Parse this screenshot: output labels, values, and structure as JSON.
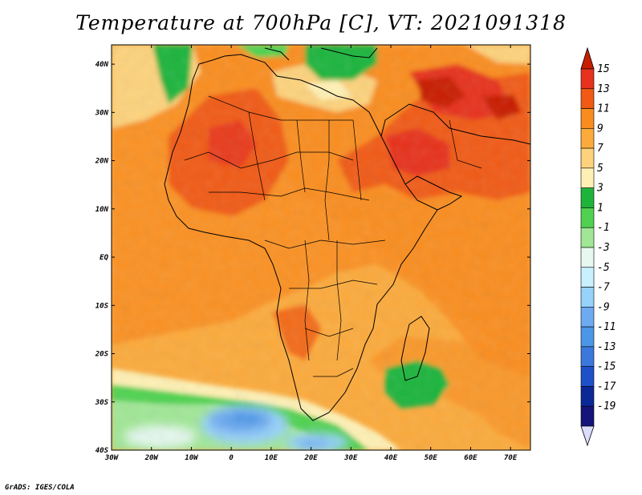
{
  "title": "Temperature at 700hPa [C], VT: 2021091318",
  "credit": "GrADS: IGES/COLA",
  "map": {
    "lon_ticks": [
      "30W",
      "20W",
      "10W",
      "0",
      "10E",
      "20E",
      "30E",
      "40E",
      "50E",
      "60E",
      "70E"
    ],
    "lat_ticks": [
      "40N",
      "30N",
      "20N",
      "10N",
      "EQ",
      "10S",
      "20S",
      "30S",
      "40S"
    ],
    "lon_range": [
      -30,
      75
    ],
    "lat_range": [
      -40,
      44
    ]
  },
  "colorbar": {
    "labels": [
      "15",
      "13",
      "11",
      "9",
      "7",
      "5",
      "3",
      "1",
      "-1",
      "-3",
      "-5",
      "-7",
      "-9",
      "-11",
      "-13",
      "-15",
      "-17",
      "-19"
    ],
    "colors": [
      "#c81e00",
      "#e6321e",
      "#f05a14",
      "#f98c1e",
      "#fbaa3c",
      "#fcd27c",
      "#fef0b4",
      "#1eb43c",
      "#50d250",
      "#a0e696",
      "#e6f8f0",
      "#c8f0ff",
      "#96d2fa",
      "#6eaaf0",
      "#4b96e6",
      "#3c78dc",
      "#1e50c8",
      "#0a2896",
      "#14147a",
      "#dcdcff"
    ]
  },
  "palette": {
    "deep_red": "#c81e00",
    "red": "#e6321e",
    "red_orange": "#f05a14",
    "orange": "#f98c1e",
    "light_orange": "#fbaa3c",
    "pale_yellow": "#fef0b4",
    "green": "#1eb43c",
    "light_green": "#50d250",
    "sky_blue": "#96d2fa",
    "blue": "#4b96e6"
  }
}
